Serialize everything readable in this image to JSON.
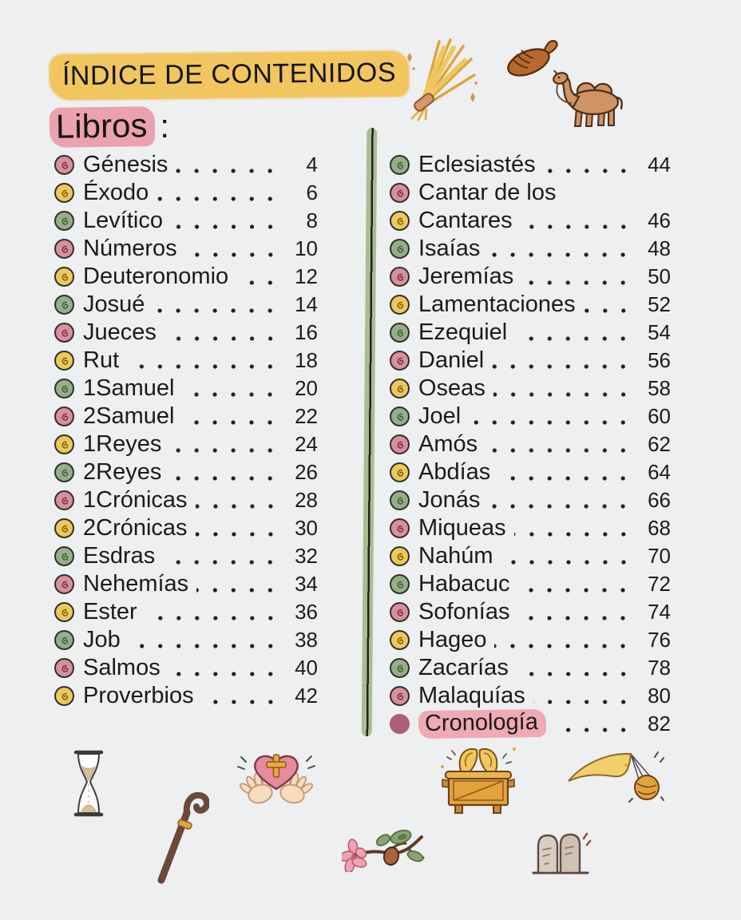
{
  "header": {
    "title": "ÍNDICE DE CONTENIDOS",
    "section_label": "Libros",
    "section_colon": ":"
  },
  "toc": {
    "left": [
      {
        "label": "Génesis",
        "page": "4",
        "bullet": "pink"
      },
      {
        "label": "Éxodo",
        "page": "6",
        "bullet": "yellow"
      },
      {
        "label": "Levítico",
        "page": "8",
        "bullet": "green"
      },
      {
        "label": "Números",
        "page": "10",
        "bullet": "pink"
      },
      {
        "label": "Deuteronomio",
        "page": "12",
        "bullet": "yellow"
      },
      {
        "label": "Josué",
        "page": "14",
        "bullet": "green"
      },
      {
        "label": "Jueces",
        "page": "16",
        "bullet": "pink"
      },
      {
        "label": "Rut",
        "page": "18",
        "bullet": "yellow"
      },
      {
        "label": "1Samuel",
        "page": "20",
        "bullet": "green"
      },
      {
        "label": "2Samuel",
        "page": "22",
        "bullet": "pink"
      },
      {
        "label": "1Reyes",
        "page": "24",
        "bullet": "yellow"
      },
      {
        "label": "2Reyes",
        "page": "26",
        "bullet": "green"
      },
      {
        "label": "1Crónicas",
        "page": "28",
        "bullet": "pink"
      },
      {
        "label": "2Crónicas",
        "page": "30",
        "bullet": "yellow"
      },
      {
        "label": "Esdras",
        "page": "32",
        "bullet": "green"
      },
      {
        "label": "Nehemías",
        "page": "34",
        "bullet": "pink"
      },
      {
        "label": "Ester",
        "page": "36",
        "bullet": "yellow"
      },
      {
        "label": "Job",
        "page": "38",
        "bullet": "green"
      },
      {
        "label": "Salmos",
        "page": "40",
        "bullet": "pink"
      },
      {
        "label": "Proverbios",
        "page": "42",
        "bullet": "yellow"
      }
    ],
    "right": [
      {
        "label": "Eclesiastés",
        "page": "44",
        "bullet": "green"
      },
      {
        "label": "Cantar de los",
        "page": null,
        "bullet": "pink"
      },
      {
        "label": "Cantares",
        "page": "46",
        "bullet": "yellow"
      },
      {
        "label": "Isaías",
        "page": "48",
        "bullet": "green"
      },
      {
        "label": "Jeremías",
        "page": "50",
        "bullet": "pink"
      },
      {
        "label": "Lamentaciones",
        "page": "52",
        "bullet": "yellow"
      },
      {
        "label": "Ezequiel",
        "page": "54",
        "bullet": "green"
      },
      {
        "label": "Daniel",
        "page": "56",
        "bullet": "pink"
      },
      {
        "label": "Oseas",
        "page": "58",
        "bullet": "yellow"
      },
      {
        "label": "Joel",
        "page": "60",
        "bullet": "green"
      },
      {
        "label": "Amós",
        "page": "62",
        "bullet": "pink"
      },
      {
        "label": "Abdías",
        "page": "64",
        "bullet": "yellow"
      },
      {
        "label": "Jonás",
        "page": "66",
        "bullet": "green"
      },
      {
        "label": "Miqueas",
        "page": "68",
        "bullet": "pink"
      },
      {
        "label": "Nahúm",
        "page": "70",
        "bullet": "yellow"
      },
      {
        "label": "Habacuc",
        "page": "72",
        "bullet": "green"
      },
      {
        "label": "Sofonías",
        "page": "74",
        "bullet": "pink"
      },
      {
        "label": "Hageo",
        "page": "76",
        "bullet": "yellow"
      },
      {
        "label": "Zacarías",
        "page": "78",
        "bullet": "green"
      },
      {
        "label": "Malaquías",
        "page": "80",
        "bullet": "pink"
      },
      {
        "label": "Cronología",
        "page": "82",
        "bullet": "dot",
        "highlight": true
      }
    ]
  },
  "decorations": {
    "top": [
      "wheat-sheaf",
      "sandal",
      "camel"
    ],
    "bottom": [
      "hourglass",
      "shepherd-staff",
      "heart-with-cross-and-hands",
      "almond-branch",
      "ark-of-the-covenant",
      "tabernacle-tent",
      "stone-tablets"
    ]
  },
  "colors": {
    "paper": "#edeff1",
    "ink": "#1d1d1f",
    "highlight_yellow": "#f1c65e",
    "highlight_pink": "#eba2ae",
    "bullet_pink": "#d98f9c",
    "bullet_yellow": "#ecc95a",
    "bullet_green": "#95af86",
    "cronologia_dot": "#ad5f75",
    "divider_green": "#aabd92"
  }
}
